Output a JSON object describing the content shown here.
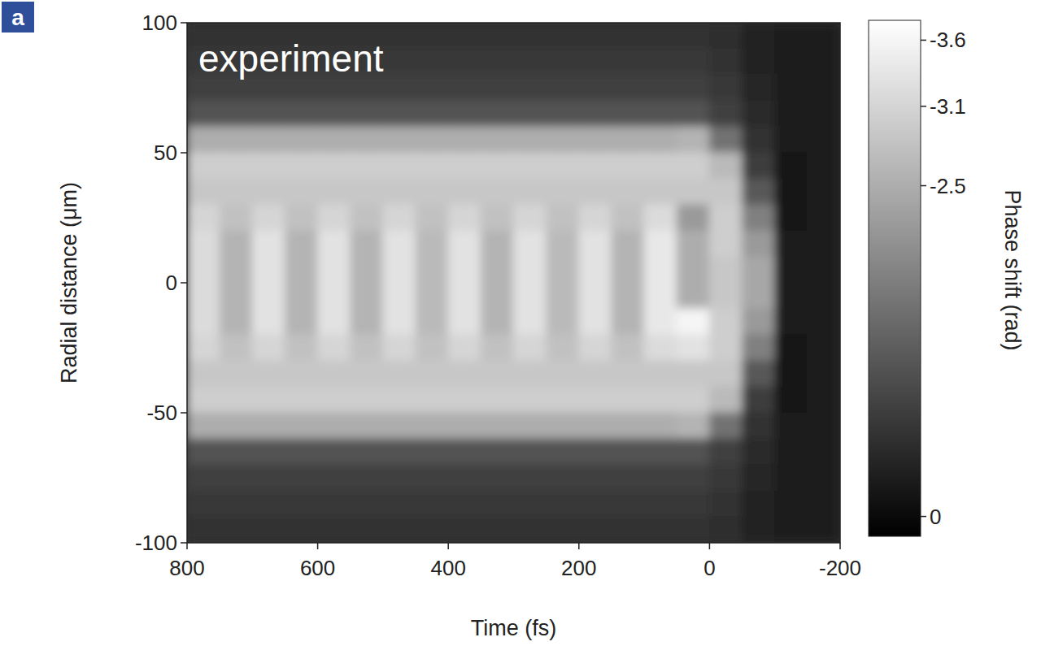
{
  "chart_data": {
    "type": "heatmap",
    "panel_label": "a",
    "annotations": [
      "experiment"
    ],
    "xlabel": "Time (fs)",
    "ylabel": "Radial distance (μm)",
    "colorbar_label": "Phase shift (rad)",
    "xlim": [
      800,
      -200
    ],
    "ylim": [
      -100,
      100
    ],
    "xticks": [
      800,
      600,
      400,
      200,
      0,
      -200
    ],
    "yticks": [
      -100,
      -50,
      0,
      50,
      100
    ],
    "colorbar_range": [
      -3.75,
      0.15
    ],
    "colorbar_ticks": [
      -3.6,
      -3.1,
      -2.5,
      0
    ],
    "x": [
      775,
      725,
      675,
      625,
      575,
      525,
      475,
      425,
      375,
      325,
      275,
      225,
      175,
      125,
      75,
      25,
      -25,
      -75,
      -125,
      -175
    ],
    "y": [
      95,
      85,
      75,
      65,
      55,
      45,
      35,
      25,
      15,
      5,
      -5,
      -15,
      -25,
      -35,
      -45,
      -55,
      -65,
      -75,
      -85,
      -95
    ],
    "values": [
      [
        -0.6,
        -0.6,
        -0.6,
        -0.6,
        -0.6,
        -0.6,
        -0.6,
        -0.6,
        -0.6,
        -0.6,
        -0.6,
        -0.6,
        -0.6,
        -0.6,
        -0.6,
        -0.6,
        -0.55,
        -0.4,
        -0.3,
        -0.3
      ],
      [
        -0.7,
        -0.7,
        -0.7,
        -0.7,
        -0.7,
        -0.7,
        -0.7,
        -0.7,
        -0.7,
        -0.7,
        -0.7,
        -0.7,
        -0.7,
        -0.7,
        -0.7,
        -0.7,
        -0.6,
        -0.4,
        -0.25,
        -0.3
      ],
      [
        -0.85,
        -0.85,
        -0.85,
        -0.85,
        -0.85,
        -0.85,
        -0.85,
        -0.85,
        -0.85,
        -0.85,
        -0.85,
        -0.85,
        -0.85,
        -0.85,
        -0.85,
        -0.85,
        -0.7,
        -0.45,
        -0.25,
        -0.3
      ],
      [
        -1.1,
        -1.1,
        -1.1,
        -1.1,
        -1.1,
        -1.1,
        -1.1,
        -1.1,
        -1.1,
        -1.1,
        -1.1,
        -1.1,
        -1.1,
        -1.1,
        -1.1,
        -1.1,
        -0.85,
        -0.5,
        -0.25,
        -0.3
      ],
      [
        -2.5,
        -2.5,
        -2.5,
        -2.5,
        -2.5,
        -2.5,
        -2.5,
        -2.5,
        -2.5,
        -2.5,
        -2.5,
        -2.5,
        -2.5,
        -2.5,
        -2.5,
        -2.6,
        -1.6,
        -0.6,
        -0.25,
        -0.3
      ],
      [
        -3.0,
        -3.0,
        -3.0,
        -3.0,
        -3.0,
        -3.0,
        -3.0,
        -3.0,
        -3.0,
        -3.0,
        -3.0,
        -3.0,
        -3.0,
        -3.0,
        -3.0,
        -3.0,
        -2.7,
        -0.8,
        -0.2,
        -0.3
      ],
      [
        -2.9,
        -2.9,
        -2.9,
        -2.9,
        -2.9,
        -2.9,
        -2.9,
        -2.9,
        -2.9,
        -2.9,
        -2.9,
        -2.9,
        -2.9,
        -2.9,
        -2.9,
        -2.9,
        -2.9,
        -1.2,
        -0.2,
        -0.3
      ],
      [
        -3.1,
        -2.8,
        -3.1,
        -2.8,
        -3.1,
        -2.8,
        -3.1,
        -2.8,
        -3.1,
        -2.8,
        -3.1,
        -2.8,
        -3.1,
        -2.8,
        -3.2,
        -2.2,
        -3.0,
        -1.8,
        -0.2,
        -0.3
      ],
      [
        -3.2,
        -2.6,
        -3.3,
        -2.6,
        -3.3,
        -2.6,
        -3.3,
        -2.7,
        -3.3,
        -2.6,
        -3.3,
        -2.7,
        -3.3,
        -2.6,
        -3.4,
        -2.5,
        -3.0,
        -2.2,
        -0.25,
        -0.3
      ],
      [
        -3.2,
        -2.6,
        -3.3,
        -2.6,
        -3.3,
        -2.6,
        -3.3,
        -2.7,
        -3.3,
        -2.6,
        -3.3,
        -2.7,
        -3.3,
        -2.6,
        -3.4,
        -2.5,
        -2.9,
        -2.4,
        -0.25,
        -0.3
      ],
      [
        -3.2,
        -2.6,
        -3.3,
        -2.6,
        -3.3,
        -2.6,
        -3.3,
        -2.7,
        -3.3,
        -2.6,
        -3.3,
        -2.7,
        -3.3,
        -2.6,
        -3.4,
        -2.5,
        -2.9,
        -2.4,
        -0.25,
        -0.3
      ],
      [
        -3.2,
        -2.6,
        -3.3,
        -2.6,
        -3.3,
        -2.6,
        -3.3,
        -2.7,
        -3.3,
        -2.6,
        -3.3,
        -2.7,
        -3.3,
        -2.6,
        -3.4,
        -3.6,
        -3.0,
        -2.2,
        -0.25,
        -0.3
      ],
      [
        -3.1,
        -2.8,
        -3.1,
        -2.8,
        -3.1,
        -2.8,
        -3.1,
        -2.8,
        -3.1,
        -2.8,
        -3.1,
        -2.8,
        -3.1,
        -2.8,
        -3.2,
        -3.3,
        -3.0,
        -1.8,
        -0.2,
        -0.3
      ],
      [
        -2.9,
        -2.9,
        -2.9,
        -2.9,
        -2.9,
        -2.9,
        -2.9,
        -2.9,
        -2.9,
        -2.9,
        -2.9,
        -2.9,
        -2.9,
        -2.9,
        -2.9,
        -2.9,
        -2.9,
        -1.2,
        -0.2,
        -0.3
      ],
      [
        -3.0,
        -3.0,
        -3.0,
        -3.0,
        -3.0,
        -3.0,
        -3.0,
        -3.0,
        -3.0,
        -3.0,
        -3.0,
        -3.0,
        -3.0,
        -3.0,
        -3.0,
        -3.0,
        -2.7,
        -0.8,
        -0.2,
        -0.3
      ],
      [
        -2.5,
        -2.5,
        -2.5,
        -2.5,
        -2.5,
        -2.5,
        -2.5,
        -2.5,
        -2.5,
        -2.5,
        -2.5,
        -2.5,
        -2.5,
        -2.5,
        -2.5,
        -2.6,
        -1.6,
        -0.6,
        -0.25,
        -0.3
      ],
      [
        -1.1,
        -1.1,
        -1.1,
        -1.1,
        -1.1,
        -1.1,
        -1.1,
        -1.1,
        -1.1,
        -1.1,
        -1.1,
        -1.1,
        -1.1,
        -1.1,
        -1.1,
        -1.1,
        -0.85,
        -0.5,
        -0.25,
        -0.3
      ],
      [
        -0.85,
        -0.85,
        -0.85,
        -0.85,
        -0.85,
        -0.85,
        -0.85,
        -0.85,
        -0.85,
        -0.85,
        -0.85,
        -0.85,
        -0.85,
        -0.85,
        -0.85,
        -0.85,
        -0.7,
        -0.45,
        -0.25,
        -0.3
      ],
      [
        -0.7,
        -0.7,
        -0.7,
        -0.7,
        -0.7,
        -0.7,
        -0.7,
        -0.7,
        -0.7,
        -0.7,
        -0.7,
        -0.7,
        -0.7,
        -0.7,
        -0.7,
        -0.7,
        -0.6,
        -0.4,
        -0.25,
        -0.3
      ],
      [
        -0.6,
        -0.6,
        -0.6,
        -0.6,
        -0.6,
        -0.6,
        -0.6,
        -0.6,
        -0.6,
        -0.6,
        -0.6,
        -0.6,
        -0.6,
        -0.6,
        -0.6,
        -0.6,
        -0.55,
        -0.4,
        -0.3,
        -0.3
      ]
    ]
  }
}
